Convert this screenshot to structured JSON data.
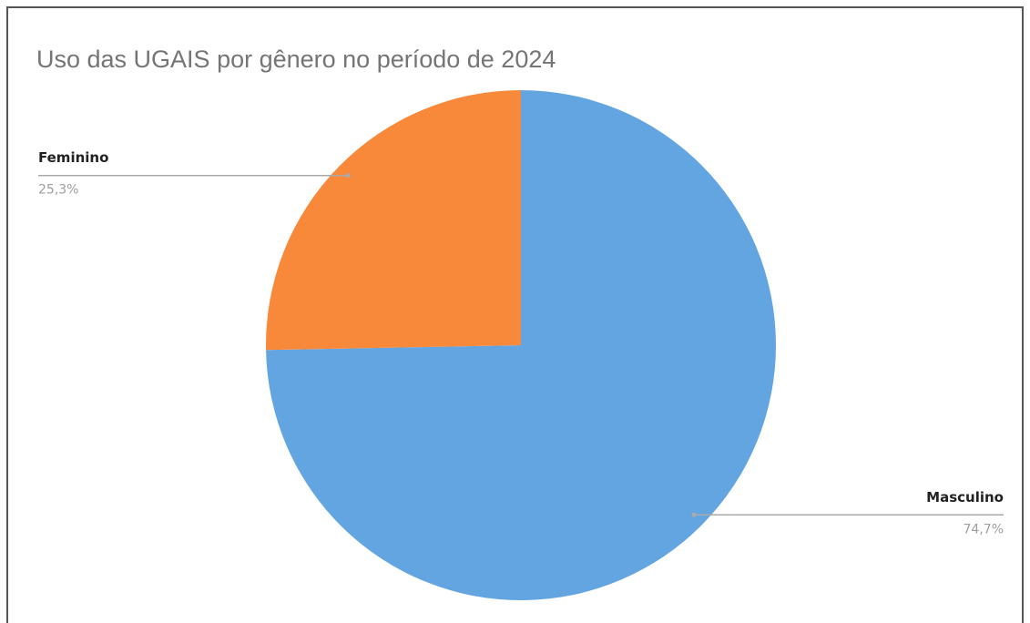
{
  "chart_data": {
    "type": "pie",
    "title": "Uso das UGAIS por gênero no período de 2024",
    "categories": [
      "Masculino",
      "Feminino"
    ],
    "values": [
      74.7,
      25.3
    ],
    "value_labels": [
      "74,7%",
      "25,3%"
    ],
    "colors": [
      "#62a5e1",
      "#f8893b"
    ]
  }
}
